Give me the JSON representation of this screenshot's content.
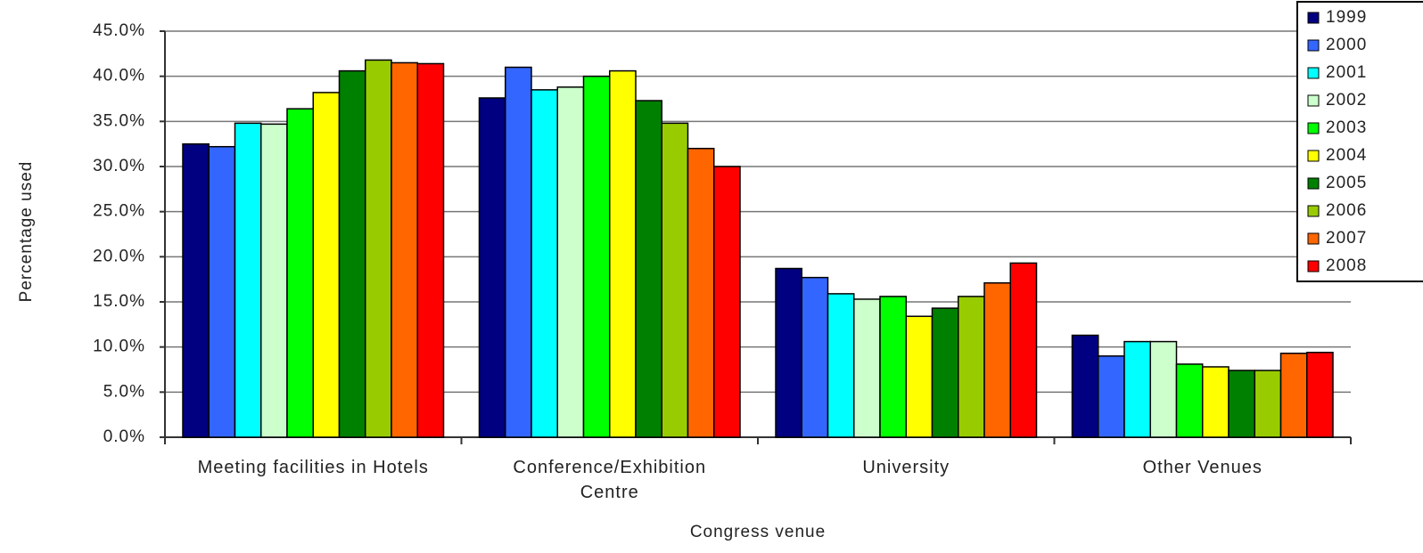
{
  "chart_data": {
    "type": "bar",
    "x_label": "Congress venue",
    "y_label": "Percentage used",
    "categories": [
      "Meeting facilities in Hotels",
      "Conference/Exhibition Centre",
      "University",
      "Other Venues"
    ],
    "series": [
      {
        "name": "1999",
        "color": "#000080",
        "values": [
          32.5,
          37.6,
          18.7,
          11.3
        ]
      },
      {
        "name": "2000",
        "color": "#3366ff",
        "values": [
          32.2,
          41.0,
          17.7,
          9.0
        ]
      },
      {
        "name": "2001",
        "color": "#00ffff",
        "values": [
          34.8,
          38.5,
          15.9,
          10.6
        ]
      },
      {
        "name": "2002",
        "color": "#ccffcc",
        "values": [
          34.7,
          38.8,
          15.3,
          10.6
        ]
      },
      {
        "name": "2003",
        "color": "#00ff00",
        "values": [
          36.4,
          40.0,
          15.6,
          8.1
        ]
      },
      {
        "name": "2004",
        "color": "#ffff00",
        "values": [
          38.2,
          40.6,
          13.4,
          7.8
        ]
      },
      {
        "name": "2005",
        "color": "#008000",
        "values": [
          40.6,
          37.3,
          14.3,
          7.4
        ]
      },
      {
        "name": "2006",
        "color": "#99cc00",
        "values": [
          41.8,
          34.8,
          15.6,
          7.4
        ]
      },
      {
        "name": "2007",
        "color": "#ff6600",
        "values": [
          41.5,
          32.0,
          17.1,
          9.3
        ]
      },
      {
        "name": "2008",
        "color": "#ff0000",
        "values": [
          41.4,
          30.0,
          19.3,
          9.4
        ]
      }
    ],
    "ylim": [
      0,
      45
    ],
    "yticks": [
      {
        "value": 0,
        "label": "0.0%"
      },
      {
        "value": 5,
        "label": "5.0%"
      },
      {
        "value": 10,
        "label": "10.0%"
      },
      {
        "value": 15,
        "label": "15.0%"
      },
      {
        "value": 20,
        "label": "20.0%"
      },
      {
        "value": 25,
        "label": "25.0%"
      },
      {
        "value": 30,
        "label": "30.0%"
      },
      {
        "value": 35,
        "label": "35.0%"
      },
      {
        "value": 40,
        "label": "40.0%"
      },
      {
        "value": 45,
        "label": "45.0%"
      }
    ],
    "grid": true,
    "legend": "right"
  }
}
